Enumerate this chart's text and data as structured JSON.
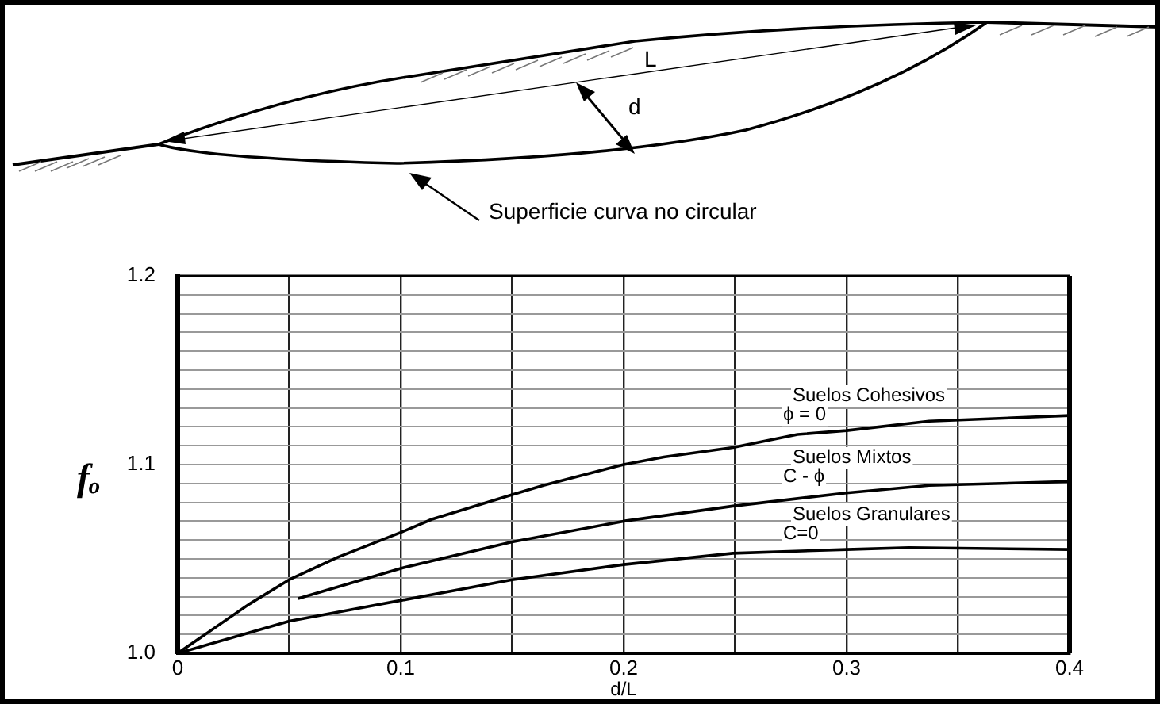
{
  "chart_data": {
    "type": "line",
    "xlabel": "d/L",
    "ylabel": "fₒ",
    "xlim": [
      0,
      0.4
    ],
    "ylim": [
      1.0,
      1.2
    ],
    "xticks": [
      0,
      {
        "value": 0.05,
        "label": null
      },
      0.1,
      {
        "value": 0.15,
        "label": null
      },
      0.2,
      {
        "value": 0.25,
        "label": null
      },
      0.3,
      {
        "value": 0.35,
        "label": null
      },
      0.4
    ],
    "yticks": [
      {
        "value": 1.0,
        "label": "1.0"
      },
      {
        "value": 1.01,
        "label": null
      },
      {
        "value": 1.02,
        "label": null
      },
      {
        "value": 1.03,
        "label": null
      },
      {
        "value": 1.04,
        "label": null
      },
      {
        "value": 1.05,
        "label": null
      },
      {
        "value": 1.06,
        "label": null
      },
      {
        "value": 1.07,
        "label": null
      },
      {
        "value": 1.08,
        "label": null
      },
      {
        "value": 1.09,
        "label": null
      },
      1.1,
      {
        "value": 1.11,
        "label": null
      },
      {
        "value": 1.12,
        "label": null
      },
      {
        "value": 1.13,
        "label": null
      },
      {
        "value": 1.14,
        "label": null
      },
      {
        "value": 1.15,
        "label": null
      },
      {
        "value": 1.16,
        "label": null
      },
      {
        "value": 1.17,
        "label": null
      },
      {
        "value": 1.18,
        "label": null
      },
      {
        "value": 1.19,
        "label": null
      },
      1.2
    ],
    "grid": true,
    "marker": "none",
    "line_style": "solid",
    "series": [
      {
        "name": "Suelos Cohesivos\nϕ = 0",
        "color": "#000000",
        "x": [
          0,
          0.032,
          0.05,
          0.072,
          0.1,
          0.114,
          0.15,
          0.164,
          0.2,
          0.218,
          0.249,
          0.278,
          0.3,
          0.337,
          0.4
        ],
        "values": [
          1.0,
          1.026,
          1.039,
          1.051,
          1.064,
          1.071,
          1.084,
          1.089,
          1.1,
          1.104,
          1.109,
          1.116,
          1.118,
          1.123,
          1.126
        ]
      },
      {
        "name": "Suelos Mixtos\nC - ϕ",
        "color": "#000000",
        "x": [
          0.054,
          0.1,
          0.15,
          0.2,
          0.249,
          0.3,
          0.337,
          0.4
        ],
        "values": [
          1.029,
          1.045,
          1.059,
          1.07,
          1.078,
          1.085,
          1.089,
          1.091
        ]
      },
      {
        "name": "Suelos Granulares\nC=0",
        "color": "#000000",
        "x": [
          0,
          0.05,
          0.1,
          0.15,
          0.2,
          0.249,
          0.3,
          0.328,
          0.4
        ],
        "values": [
          1.0,
          1.017,
          1.028,
          1.039,
          1.047,
          1.053,
          1.055,
          1.056,
          1.055
        ]
      }
    ],
    "annotations": [
      "L",
      "d",
      "Superficie curva no circular"
    ]
  }
}
